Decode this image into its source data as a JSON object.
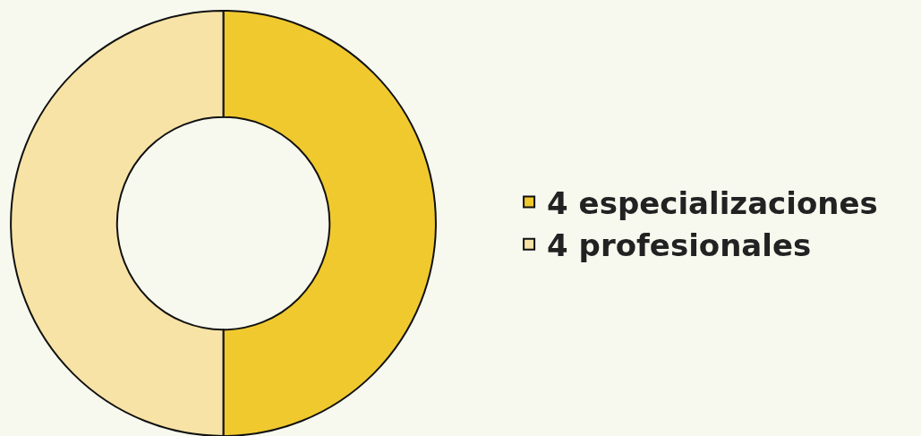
{
  "chart_data": {
    "type": "donut",
    "categories": [
      "4 especializaciones",
      "4 profesionales"
    ],
    "values": [
      4,
      4
    ],
    "colors": [
      "#f0c92f",
      "#f7e3a5"
    ],
    "legend": "right"
  }
}
